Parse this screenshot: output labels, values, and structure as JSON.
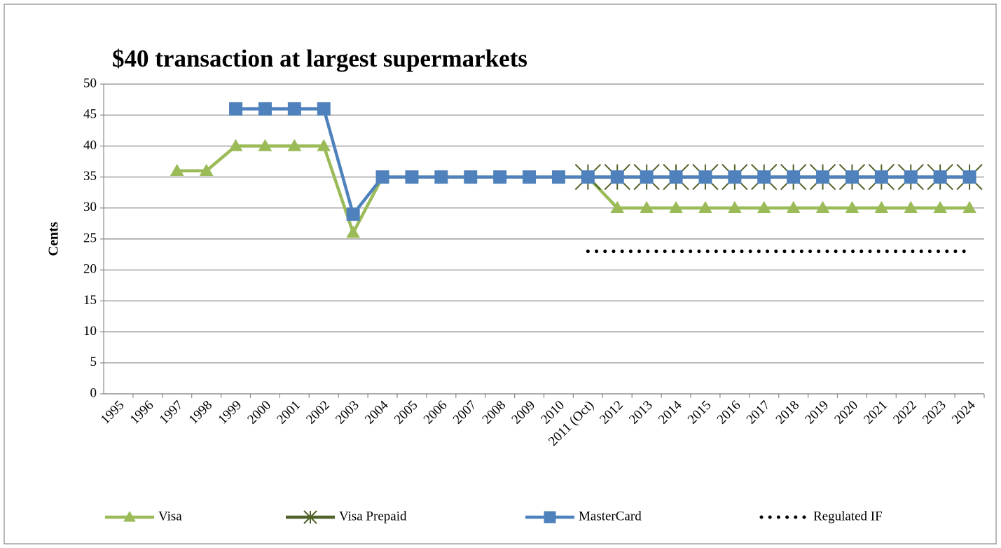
{
  "chart_data": {
    "type": "line",
    "title": "$40 transaction at largest supermarkets",
    "y_label": "Cents",
    "categories": [
      "1995",
      "1996",
      "1997",
      "1998",
      "1999",
      "2000",
      "2001",
      "2002",
      "2003",
      "2004",
      "2005",
      "2006",
      "2007",
      "2008",
      "2009",
      "2010",
      "2011 (Oct)",
      "2012",
      "2013",
      "2014",
      "2015",
      "2016",
      "2017",
      "2018",
      "2019",
      "2020",
      "2021",
      "2022",
      "2023",
      "2024"
    ],
    "series": [
      {
        "name": "Visa",
        "color": "#9bbb59",
        "marker": "triangle",
        "values": [
          null,
          null,
          36,
          36,
          40,
          40,
          40,
          40,
          26,
          35,
          35,
          35,
          35,
          35,
          35,
          35,
          35,
          30,
          30,
          30,
          30,
          30,
          30,
          30,
          30,
          30,
          30,
          30,
          30,
          30
        ]
      },
      {
        "name": "Visa Prepaid",
        "color": "#4f6228",
        "marker": "star",
        "values": [
          null,
          null,
          null,
          null,
          null,
          null,
          null,
          null,
          null,
          null,
          null,
          null,
          null,
          null,
          null,
          null,
          35,
          35,
          35,
          35,
          35,
          35,
          35,
          35,
          35,
          35,
          35,
          35,
          35,
          35
        ]
      },
      {
        "name": "MasterCard",
        "color": "#4f81bd",
        "marker": "square",
        "values": [
          null,
          null,
          null,
          null,
          46,
          46,
          46,
          46,
          29,
          35,
          35,
          35,
          35,
          35,
          35,
          35,
          35,
          35,
          35,
          35,
          35,
          35,
          35,
          35,
          35,
          35,
          35,
          35,
          35,
          35
        ]
      },
      {
        "name": "Regulated IF",
        "color": "#000000",
        "marker": "none",
        "dash": "dot",
        "values": [
          null,
          null,
          null,
          null,
          null,
          null,
          null,
          null,
          null,
          null,
          null,
          null,
          null,
          null,
          null,
          null,
          23,
          23,
          23,
          23,
          23,
          23,
          23,
          23,
          23,
          23,
          23,
          23,
          23,
          23
        ]
      }
    ],
    "ylim": [
      0,
      50
    ],
    "yticks": [
      0,
      5,
      10,
      15,
      20,
      25,
      30,
      35,
      40,
      45,
      50
    ],
    "grid": true,
    "legend": "bottom"
  }
}
